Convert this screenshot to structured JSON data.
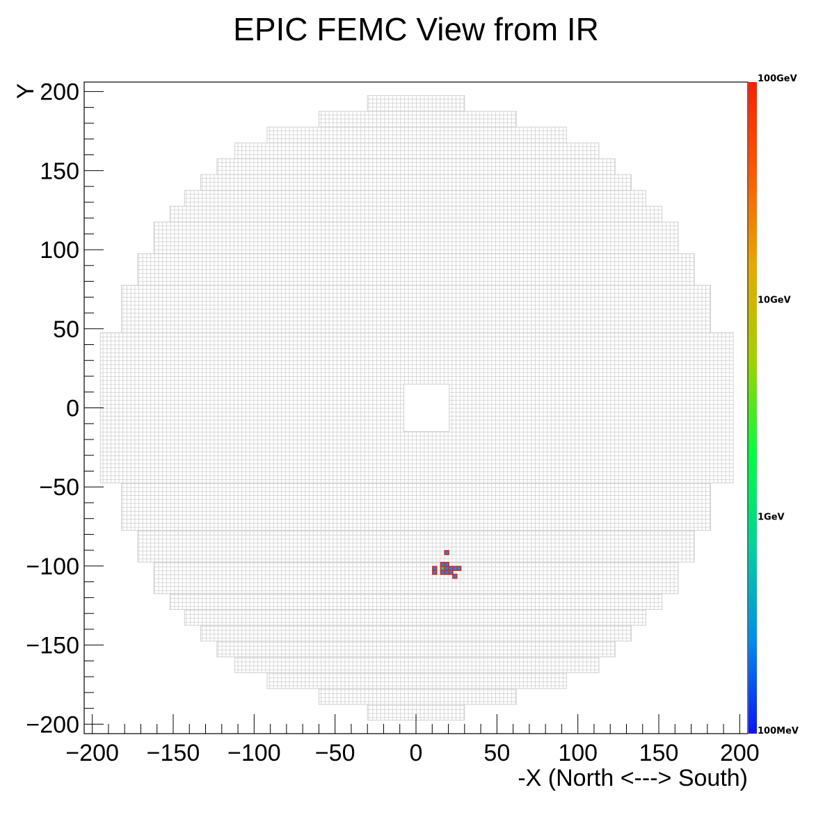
{
  "chart_data": {
    "type": "heatmap",
    "title": "EPIC FEMC View from IR",
    "xlabel": "-X (North <---> South)",
    "ylabel": "Y",
    "xlim": [
      -205,
      205
    ],
    "ylim": [
      -206,
      206
    ],
    "x_ticks": [
      "−200",
      "−150",
      "−100",
      "−50",
      "0",
      "50",
      "100",
      "150",
      "200"
    ],
    "y_ticks": [
      "−200",
      "−150",
      "−100",
      "−50",
      "0",
      "50",
      "100",
      "150",
      "200"
    ],
    "log_scale_z": true,
    "colorbar": {
      "labels": [
        "100MeV",
        "1GeV",
        "10GeV",
        "100GeV"
      ],
      "colors": [
        "#0a14ff",
        "#008cf0",
        "#00d29b",
        "#00ff3c",
        "#a0d200",
        "#e6aa00",
        "#ff5a00",
        "#ff1e00"
      ]
    },
    "detector_outline": {
      "cell_pitch": 2.5,
      "beam_hole": {
        "x": [
          -7.5,
          20.5
        ],
        "y": [
          -15,
          15
        ]
      },
      "rows": [
        {
          "y": [
            187.5,
            197.5
          ],
          "x": [
            -30,
            30
          ]
        },
        {
          "y": [
            177.5,
            187.5
          ],
          "x": [
            -60,
            62
          ]
        },
        {
          "y": [
            167.5,
            177.5
          ],
          "x": [
            -92,
            93
          ]
        },
        {
          "y": [
            157.5,
            167.5
          ],
          "x": [
            -112,
            113
          ]
        },
        {
          "y": [
            147.5,
            157.5
          ],
          "x": [
            -123,
            123
          ]
        },
        {
          "y": [
            137.5,
            147.5
          ],
          "x": [
            -133,
            133
          ]
        },
        {
          "y": [
            127.5,
            137.5
          ],
          "x": [
            -143,
            142
          ]
        },
        {
          "y": [
            117.5,
            127.5
          ],
          "x": [
            -152,
            152
          ]
        },
        {
          "y": [
            97.5,
            117.5
          ],
          "x": [
            -162,
            162
          ]
        },
        {
          "y": [
            77.5,
            97.5
          ],
          "x": [
            -172,
            172
          ]
        },
        {
          "y": [
            47.5,
            77.5
          ],
          "x": [
            -182,
            182
          ]
        },
        {
          "y": [
            -47.5,
            47.5
          ],
          "x": [
            -195,
            196
          ]
        },
        {
          "y": [
            -77.5,
            -47.5
          ],
          "x": [
            -182,
            182
          ]
        },
        {
          "y": [
            -97.5,
            -77.5
          ],
          "x": [
            -172,
            172
          ]
        },
        {
          "y": [
            -117.5,
            -97.5
          ],
          "x": [
            -162,
            162
          ]
        },
        {
          "y": [
            -127.5,
            -117.5
          ],
          "x": [
            -152,
            152
          ]
        },
        {
          "y": [
            -137.5,
            -127.5
          ],
          "x": [
            -143,
            142
          ]
        },
        {
          "y": [
            -147.5,
            -137.5
          ],
          "x": [
            -133,
            133
          ]
        },
        {
          "y": [
            -157.5,
            -147.5
          ],
          "x": [
            -123,
            123
          ]
        },
        {
          "y": [
            -167.5,
            -157.5
          ],
          "x": [
            -112,
            113
          ]
        },
        {
          "y": [
            -177.5,
            -167.5
          ],
          "x": [
            -92,
            93
          ]
        },
        {
          "y": [
            -187.5,
            -177.5
          ],
          "x": [
            -60,
            62
          ]
        },
        {
          "y": [
            -197.5,
            -187.5
          ],
          "x": [
            -30,
            30
          ]
        }
      ]
    },
    "hits": [
      {
        "x": 19,
        "y": -91.5,
        "energy_gev": 0.3
      },
      {
        "x": 16.5,
        "y": -99,
        "energy_gev": 0.3
      },
      {
        "x": 19,
        "y": -99,
        "energy_gev": 0.4
      },
      {
        "x": 16.5,
        "y": -101.5,
        "energy_gev": 0.5
      },
      {
        "x": 19,
        "y": -101.5,
        "energy_gev": 0.4
      },
      {
        "x": 11.5,
        "y": -101.5,
        "energy_gev": 0.3
      },
      {
        "x": 11.5,
        "y": -104,
        "energy_gev": 0.3
      },
      {
        "x": 21.5,
        "y": -101.5,
        "energy_gev": 0.3
      },
      {
        "x": 24,
        "y": -101.5,
        "energy_gev": 0.25
      },
      {
        "x": 26.5,
        "y": -101.5,
        "energy_gev": 0.2
      },
      {
        "x": 16.5,
        "y": -104,
        "energy_gev": 0.4
      },
      {
        "x": 19,
        "y": -104,
        "energy_gev": 0.3
      },
      {
        "x": 21.5,
        "y": -104,
        "energy_gev": 0.3
      },
      {
        "x": 24,
        "y": -106.5,
        "energy_gev": 0.2
      }
    ]
  }
}
